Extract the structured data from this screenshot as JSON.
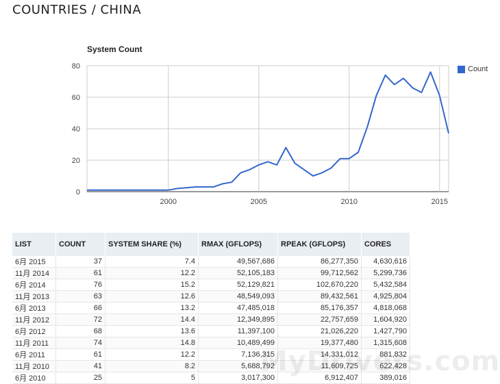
{
  "page": {
    "title": "COUNTRIES / CHINA"
  },
  "chart_data": {
    "type": "line",
    "title": "System Count",
    "xlabel": "",
    "ylabel": "",
    "xlim": [
      1995.5,
      2015.5
    ],
    "ylim": [
      0,
      80
    ],
    "xticks": [
      2000,
      2005,
      2010,
      2015
    ],
    "yticks": [
      0,
      20,
      40,
      60,
      80
    ],
    "grid": true,
    "legend": "right",
    "series": [
      {
        "name": "Count",
        "color": "#3366cc",
        "x": [
          1995.5,
          1996.0,
          1996.5,
          1997.0,
          1997.5,
          1998.0,
          1998.5,
          1999.0,
          1999.5,
          2000.0,
          2000.5,
          2001.0,
          2001.5,
          2002.0,
          2002.5,
          2003.0,
          2003.5,
          2004.0,
          2004.5,
          2005.0,
          2005.5,
          2006.0,
          2006.5,
          2007.0,
          2007.5,
          2008.0,
          2008.5,
          2009.0,
          2009.5,
          2010.0,
          2010.5,
          2011.0,
          2011.5,
          2012.0,
          2012.5,
          2013.0,
          2013.5,
          2014.0,
          2014.5,
          2015.0,
          2015.5
        ],
        "y": [
          1,
          1,
          1,
          1,
          1,
          1,
          1,
          1,
          1,
          1,
          2,
          2.5,
          3,
          3,
          3,
          5,
          6,
          12,
          14,
          17,
          19,
          17,
          28,
          18,
          14,
          10,
          12,
          15,
          21,
          21,
          25,
          41,
          61,
          74,
          68,
          72,
          66,
          63,
          76,
          61,
          37
        ]
      }
    ]
  },
  "table": {
    "headers": [
      "LIST",
      "COUNT",
      "SYSTEM SHARE (%)",
      "RMAX (GFLOPS)",
      "RPEAK (GFLOPS)",
      "CORES"
    ],
    "rows": [
      [
        "6月 2015",
        "37",
        "7.4",
        "49,567,686",
        "86,277,350",
        "4,630,616"
      ],
      [
        "11月 2014",
        "61",
        "12.2",
        "52,105,183",
        "99,712,562",
        "5,299,736"
      ],
      [
        "6月 2014",
        "76",
        "15.2",
        "52,129,821",
        "102,670,220",
        "5,432,584"
      ],
      [
        "11月 2013",
        "63",
        "12.6",
        "48,549,093",
        "89,432,561",
        "4,925,804"
      ],
      [
        "6月 2013",
        "66",
        "13.2",
        "47,485,018",
        "85,176,357",
        "4,818,068"
      ],
      [
        "11月 2012",
        "72",
        "14.4",
        "12,349,895",
        "22,757,659",
        "1,604,920"
      ],
      [
        "6月 2012",
        "68",
        "13.6",
        "11,397,100",
        "21,026,220",
        "1,427,790"
      ],
      [
        "11月 2011",
        "74",
        "14.8",
        "10,489,499",
        "19,377,480",
        "1,315,608"
      ],
      [
        "6月 2011",
        "61",
        "12.2",
        "7,136,315",
        "14,331,012",
        "881,832"
      ],
      [
        "11月 2010",
        "41",
        "8.2",
        "5,688,792",
        "11,609,725",
        "622,428"
      ],
      [
        "6月 2010",
        "25",
        "5",
        "3,017,300",
        "6,912,407",
        "389,016"
      ]
    ]
  },
  "watermark": "MyDrivers.com"
}
